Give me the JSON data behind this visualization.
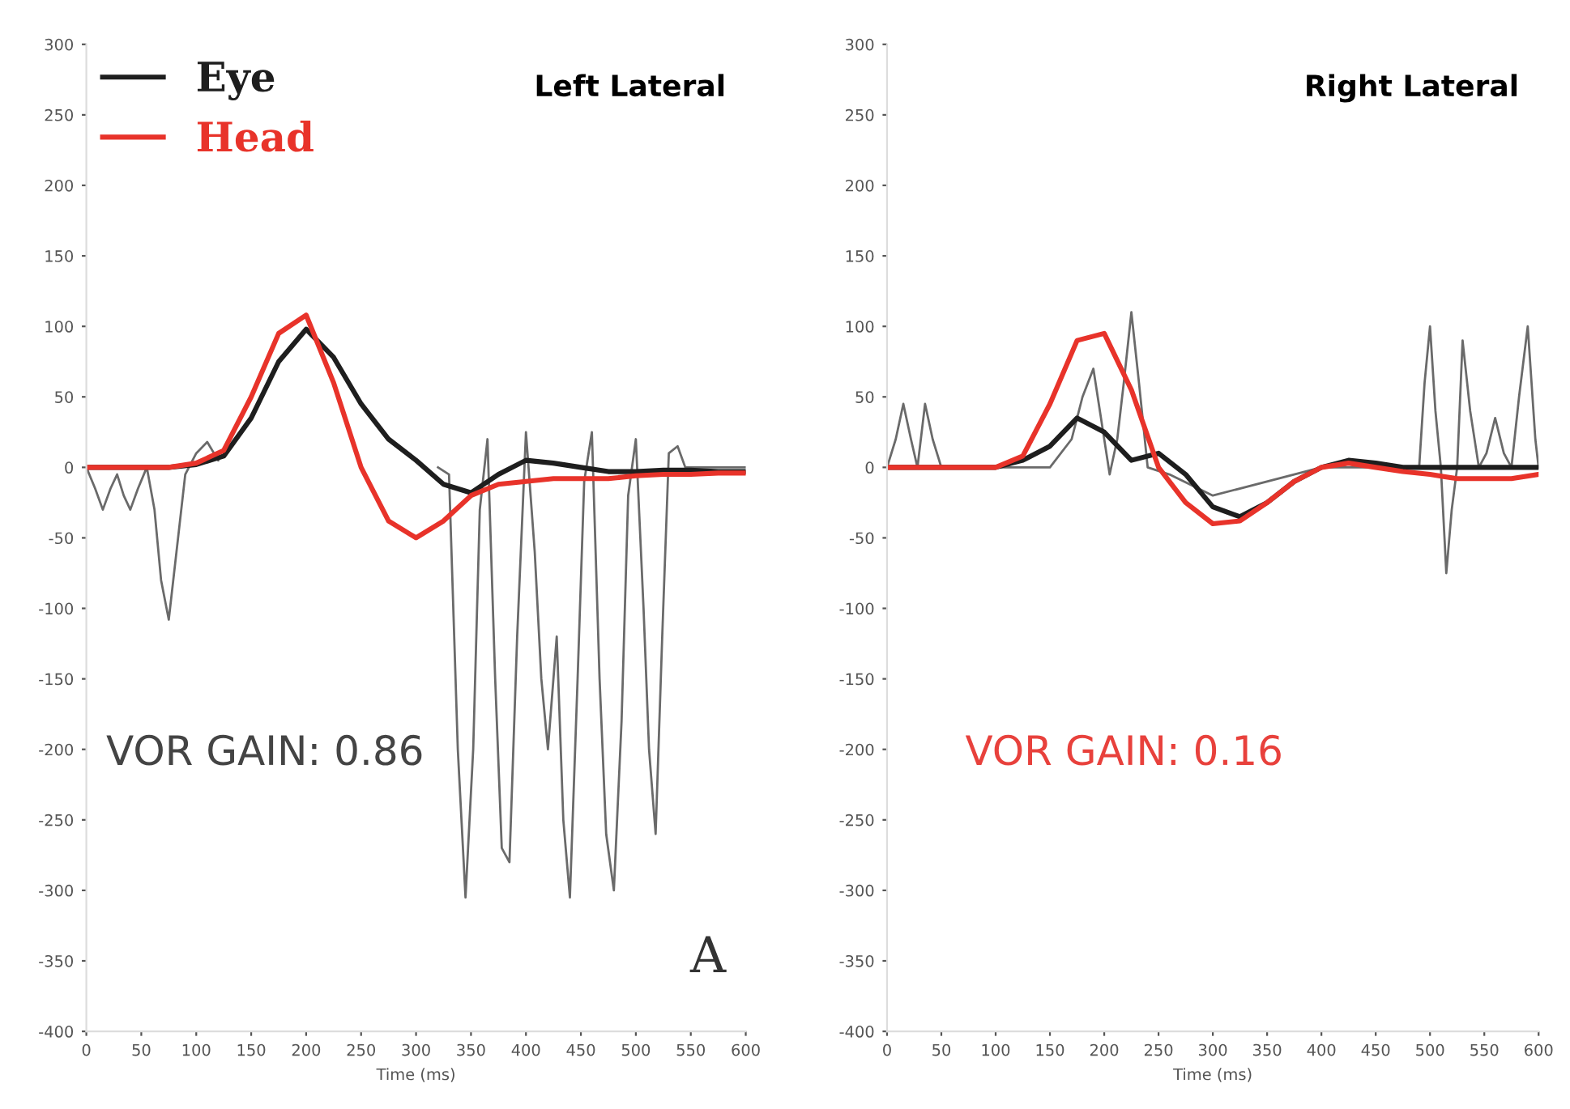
{
  "chart_data": [
    {
      "type": "line",
      "title": "Left Lateral",
      "xlabel": "Time (ms)",
      "xlim": [
        0,
        600
      ],
      "ylim": [
        -400,
        300
      ],
      "xticks": [
        0,
        50,
        100,
        150,
        200,
        250,
        300,
        350,
        400,
        450,
        500,
        550,
        600
      ],
      "yticks": [
        -400,
        -350,
        -300,
        -250,
        -200,
        -150,
        -100,
        -50,
        0,
        50,
        100,
        150,
        200,
        250,
        300
      ],
      "grid": false,
      "legend": "top left",
      "annotations": [
        "VOR GAIN: 0.86",
        "A"
      ],
      "series": [
        {
          "color": "#6a6a6a",
          "x": [
            0,
            8,
            15,
            22,
            28,
            34,
            40,
            47,
            55,
            62,
            68,
            75,
            82,
            90,
            100,
            110,
            120
          ],
          "values": [
            0,
            -15,
            -30,
            -15,
            -5,
            -20,
            -30,
            -15,
            0,
            -30,
            -80,
            -108,
            -60,
            -5,
            10,
            18,
            5
          ]
        },
        {
          "color": "#6a6a6a",
          "x": [
            320,
            330,
            338,
            345,
            352,
            358,
            365,
            372,
            378,
            385,
            392,
            400,
            408,
            414,
            420,
            428,
            434,
            440,
            447,
            453,
            460,
            467,
            473,
            480,
            487,
            493,
            500,
            507,
            512,
            518,
            524,
            530,
            538,
            545,
            560,
            600
          ],
          "values": [
            0,
            -5,
            -200,
            -305,
            -200,
            -30,
            20,
            -150,
            -270,
            -280,
            -120,
            25,
            -60,
            -150,
            -200,
            -120,
            -250,
            -305,
            -150,
            -10,
            25,
            -150,
            -260,
            -300,
            -180,
            -20,
            20,
            -100,
            -200,
            -260,
            -120,
            10,
            15,
            0,
            0,
            0
          ]
        },
        {
          "name": "Eye",
          "color": "#1e1e1e",
          "x": [
            0,
            25,
            50,
            75,
            100,
            125,
            150,
            175,
            200,
            225,
            250,
            275,
            300,
            325,
            350,
            375,
            400,
            425,
            450,
            475,
            500,
            525,
            550,
            575,
            600
          ],
          "values": [
            0,
            0,
            0,
            0,
            2,
            8,
            35,
            75,
            98,
            78,
            45,
            20,
            5,
            -12,
            -18,
            -5,
            5,
            3,
            0,
            -3,
            -3,
            -2,
            -2,
            -3,
            -3
          ]
        },
        {
          "name": "Head",
          "color": "#e8332a",
          "x": [
            0,
            25,
            50,
            75,
            100,
            125,
            150,
            175,
            200,
            225,
            250,
            275,
            300,
            325,
            350,
            375,
            400,
            425,
            450,
            475,
            500,
            525,
            550,
            575,
            600
          ],
          "values": [
            0,
            0,
            0,
            0,
            3,
            12,
            50,
            95,
            108,
            60,
            0,
            -38,
            -50,
            -38,
            -20,
            -12,
            -10,
            -8,
            -8,
            -8,
            -6,
            -5,
            -5,
            -4,
            -4
          ]
        }
      ]
    },
    {
      "type": "line",
      "title": "Right Lateral",
      "xlabel": "Time (ms)",
      "xlim": [
        0,
        600
      ],
      "ylim": [
        -400,
        300
      ],
      "xticks": [
        0,
        50,
        100,
        150,
        200,
        250,
        300,
        350,
        400,
        450,
        500,
        550,
        600
      ],
      "yticks": [
        -400,
        -350,
        -300,
        -250,
        -200,
        -150,
        -100,
        -50,
        0,
        50,
        100,
        150,
        200,
        250,
        300
      ],
      "grid": false,
      "annotations": [
        "VOR GAIN: 0.16"
      ],
      "series": [
        {
          "color": "#6a6a6a",
          "x": [
            0,
            8,
            15,
            22,
            28,
            35,
            42,
            50,
            100,
            150,
            170,
            180,
            190,
            198,
            205,
            212,
            218,
            225,
            232,
            240,
            260,
            300,
            400,
            480,
            490,
            495,
            500,
            505,
            510,
            515,
            520,
            525,
            530,
            537,
            545,
            552,
            560,
            568,
            575,
            582,
            590,
            597,
            600
          ],
          "values": [
            0,
            20,
            45,
            20,
            0,
            45,
            20,
            0,
            0,
            0,
            20,
            50,
            70,
            30,
            -5,
            20,
            60,
            110,
            60,
            0,
            -5,
            -20,
            0,
            0,
            0,
            60,
            100,
            40,
            0,
            -75,
            -30,
            0,
            90,
            40,
            0,
            10,
            35,
            10,
            0,
            50,
            100,
            20,
            0
          ]
        },
        {
          "color": "#1e1e1e",
          "x": [
            0,
            25,
            50,
            75,
            100,
            125,
            150,
            175,
            200,
            225,
            250,
            275,
            300,
            325,
            350,
            375,
            400,
            425,
            450,
            475,
            500,
            525,
            550,
            575,
            600
          ],
          "values": [
            0,
            0,
            0,
            0,
            0,
            5,
            15,
            35,
            25,
            5,
            10,
            -5,
            -28,
            -35,
            -25,
            -10,
            0,
            5,
            3,
            0,
            0,
            0,
            0,
            0,
            0
          ]
        },
        {
          "color": "#e8332a",
          "x": [
            0,
            25,
            50,
            75,
            100,
            125,
            150,
            175,
            200,
            225,
            250,
            275,
            300,
            325,
            350,
            375,
            400,
            425,
            450,
            475,
            500,
            525,
            550,
            575,
            600
          ],
          "values": [
            0,
            0,
            0,
            0,
            0,
            8,
            45,
            90,
            95,
            55,
            0,
            -25,
            -40,
            -38,
            -25,
            -10,
            0,
            3,
            0,
            -3,
            -5,
            -8,
            -8,
            -8,
            -5
          ]
        }
      ]
    }
  ]
}
